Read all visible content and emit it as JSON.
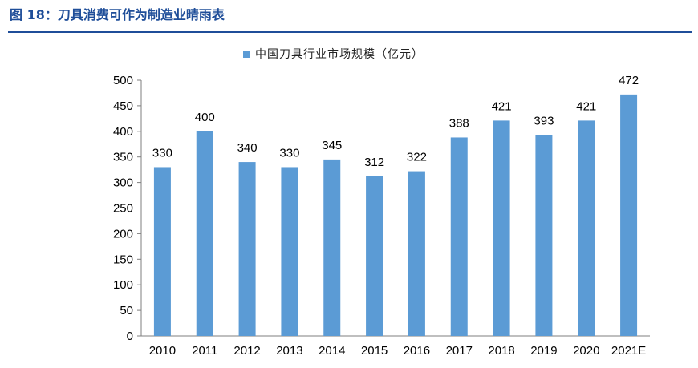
{
  "figure": {
    "title": "图 18：刀具消费可作为制造业晴雨表"
  },
  "chart_data": {
    "type": "bar",
    "categories": [
      "2010",
      "2011",
      "2012",
      "2013",
      "2014",
      "2015",
      "2016",
      "2017",
      "2018",
      "2019",
      "2020",
      "2021E"
    ],
    "series": [
      {
        "name": "中国刀具行业市场规模（亿元）",
        "values": [
          330,
          400,
          340,
          330,
          345,
          312,
          322,
          388,
          421,
          393,
          421,
          472
        ],
        "color": "#5b9bd5"
      }
    ],
    "data_labels": [
      "330",
      "400",
      "340",
      "330",
      "345",
      "312",
      "322",
      "388",
      "421",
      "393",
      "421",
      "472"
    ],
    "ylim": [
      0,
      500
    ],
    "y_ticks": [
      "0",
      "50",
      "100",
      "150",
      "200",
      "250",
      "300",
      "350",
      "400",
      "450",
      "500"
    ],
    "xlabel": "",
    "ylabel": "",
    "grid": false,
    "legend_position": "top"
  }
}
